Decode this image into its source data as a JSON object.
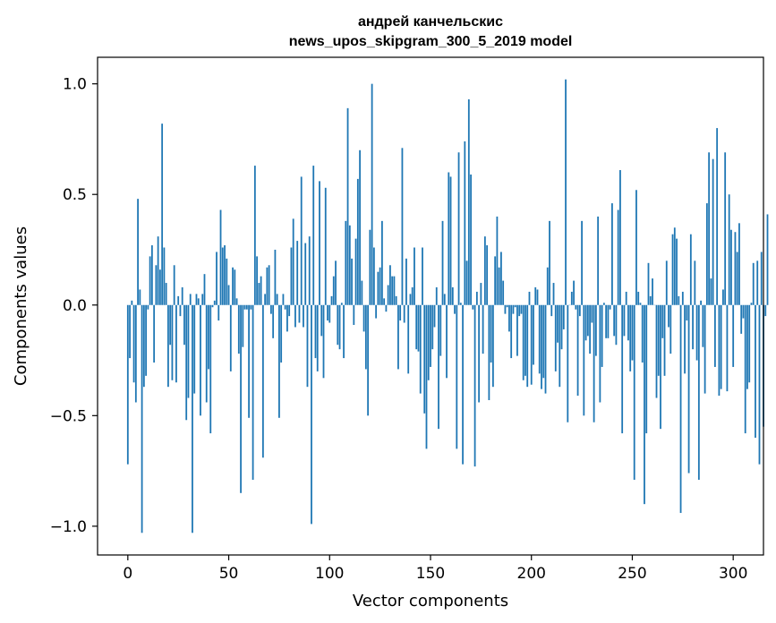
{
  "chart_data": {
    "type": "bar",
    "title_lines": [
      "андрей канчельскис",
      "news_upos_skipgram_300_5_2019 model"
    ],
    "xlabel": "Vector components",
    "ylabel": "Components values",
    "xlim": [
      -15,
      315
    ],
    "ylim": [
      -1.13,
      1.12
    ],
    "xticks": [
      0,
      50,
      100,
      150,
      200,
      250,
      300
    ],
    "yticks": [
      -1.0,
      -0.5,
      0.0,
      0.5,
      1.0
    ],
    "ytick_labels": [
      "−1.0",
      "−0.5",
      "0.0",
      "0.5",
      "1.0"
    ],
    "bar_color": "#1f77b4",
    "values": [
      -0.72,
      -0.24,
      0.02,
      -0.35,
      -0.44,
      0.48,
      0.07,
      -1.03,
      -0.37,
      -0.32,
      -0.02,
      0.22,
      0.27,
      -0.26,
      0.18,
      0.31,
      0.16,
      0.82,
      0.26,
      0.1,
      -0.37,
      -0.18,
      -0.34,
      0.18,
      -0.35,
      0.04,
      -0.05,
      0.08,
      -0.18,
      -0.52,
      -0.42,
      0.05,
      -1.03,
      -0.4,
      0.05,
      0.03,
      -0.5,
      0.05,
      0.14,
      -0.44,
      -0.29,
      -0.58,
      -0.01,
      0.02,
      0.24,
      -0.07,
      0.43,
      0.26,
      0.27,
      0.21,
      0.09,
      -0.3,
      0.17,
      0.16,
      0.03,
      -0.22,
      -0.85,
      -0.19,
      -0.02,
      -0.02,
      -0.51,
      -0.02,
      -0.79,
      0.63,
      0.22,
      0.1,
      0.13,
      -0.69,
      0.05,
      0.17,
      0.18,
      -0.04,
      -0.15,
      0.25,
      0.05,
      -0.51,
      -0.26,
      0.05,
      -0.02,
      -0.12,
      -0.05,
      0.26,
      0.39,
      -0.1,
      0.29,
      -0.08,
      0.58,
      -0.1,
      0.28,
      -0.37,
      0.31,
      -0.99,
      0.63,
      -0.24,
      -0.3,
      0.56,
      -0.14,
      -0.33,
      0.53,
      -0.07,
      -0.08,
      0.04,
      0.13,
      0.2,
      -0.18,
      -0.2,
      0.01,
      -0.24,
      0.38,
      0.89,
      0.36,
      0.21,
      -0.09,
      0.3,
      0.57,
      0.7,
      0.11,
      -0.12,
      -0.29,
      -0.5,
      0.34,
      1.0,
      0.26,
      -0.06,
      0.15,
      0.17,
      0.38,
      0.03,
      -0.03,
      0.09,
      0.18,
      0.13,
      0.13,
      0.04,
      -0.29,
      -0.07,
      0.71,
      -0.08,
      0.21,
      -0.31,
      0.05,
      0.08,
      0.26,
      -0.2,
      -0.21,
      -0.4,
      0.26,
      -0.49,
      -0.65,
      -0.34,
      -0.28,
      -0.2,
      -0.1,
      0.08,
      -0.56,
      -0.23,
      0.38,
      0.05,
      -0.33,
      0.6,
      0.58,
      0.08,
      -0.04,
      -0.65,
      0.69,
      0.01,
      -0.72,
      0.74,
      0.2,
      0.93,
      0.59,
      -0.02,
      -0.73,
      0.06,
      -0.44,
      0.1,
      -0.22,
      0.31,
      0.27,
      -0.43,
      -0.26,
      -0.37,
      0.22,
      0.4,
      0.17,
      0.24,
      0.11,
      -0.04,
      -0.01,
      -0.12,
      -0.24,
      -0.04,
      -0.01,
      -0.23,
      -0.05,
      -0.04,
      -0.34,
      -0.32,
      -0.37,
      0.06,
      -0.36,
      -0.27,
      0.08,
      0.07,
      -0.31,
      -0.38,
      -0.33,
      -0.4,
      0.17,
      0.38,
      -0.05,
      0.1,
      -0.3,
      -0.17,
      -0.37,
      -0.2,
      -0.11,
      1.02,
      -0.53,
      0.0,
      0.06,
      0.11,
      -0.02,
      -0.41,
      -0.05,
      0.38,
      -0.5,
      -0.16,
      -0.14,
      -0.22,
      -0.08,
      -0.53,
      -0.23,
      0.4,
      -0.44,
      -0.28,
      0.01,
      -0.15,
      -0.15,
      -0.02,
      0.46,
      -0.14,
      -0.18,
      0.43,
      0.61,
      -0.58,
      -0.14,
      0.06,
      -0.16,
      -0.3,
      -0.25,
      -0.79,
      0.52,
      0.06,
      0.01,
      -0.26,
      -0.9,
      -0.58,
      0.19,
      0.04,
      0.12,
      0.0,
      -0.42,
      -0.32,
      -0.56,
      -0.15,
      -0.32,
      0.2,
      -0.1,
      -0.22,
      0.32,
      0.35,
      0.3,
      0.04,
      -0.94,
      0.06,
      -0.31,
      -0.07,
      -0.76,
      0.32,
      -0.2,
      0.2,
      -0.25,
      -0.79,
      0.02,
      -0.19,
      -0.4,
      0.46,
      0.69,
      0.12,
      0.66,
      -0.28,
      0.8,
      -0.41,
      -0.38,
      0.07,
      0.69,
      -0.39,
      0.5,
      0.34,
      -0.28,
      0.33,
      0.24,
      0.37,
      -0.13,
      -0.06,
      -0.58,
      -0.38,
      -0.35,
      0.01,
      0.19,
      -0.6,
      0.2,
      -0.72,
      0.24,
      -0.55,
      -0.05,
      0.41
    ]
  }
}
